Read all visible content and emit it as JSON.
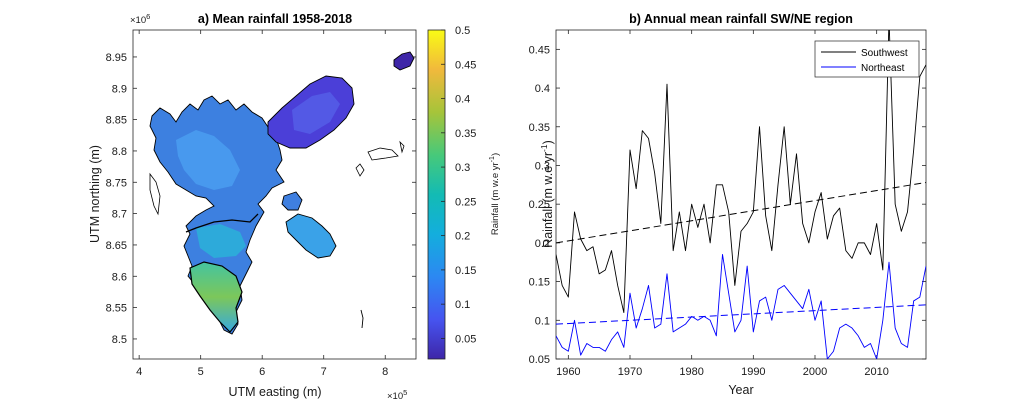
{
  "chart_data": [
    {
      "type": "heatmap",
      "title": "a) Mean rainfall 1958-2018",
      "xlabel": "UTM easting (m)",
      "ylabel": "UTM northing (m)",
      "x_exponent": "×10",
      "x_exponent_power": "5",
      "y_exponent": "×10",
      "y_exponent_power": "6",
      "xticks": [
        "4",
        "5",
        "6",
        "7",
        "8"
      ],
      "yticks": [
        "8.5",
        "8.55",
        "8.6",
        "8.65",
        "8.7",
        "8.75",
        "8.8",
        "8.85",
        "8.9",
        "8.95"
      ],
      "colorbar": {
        "label_main": "Rainfall (m w.e yr",
        "label_exp": "-1",
        "label_end": ")",
        "ticks": [
          "0.05",
          "0.1",
          "0.15",
          "0.2",
          "0.25",
          "0.3",
          "0.35",
          "0.4",
          "0.45",
          "0.5"
        ],
        "range": [
          0.02,
          0.5
        ],
        "colormap": "parula"
      }
    },
    {
      "type": "line",
      "title": "b) Annual mean rainfall SW/NE region",
      "xlabel": "Year",
      "ylabel_main": "Rainfall (m w.e yr",
      "ylabel_exp": "-1",
      "ylabel_end": ")",
      "xlim": [
        1958,
        2018
      ],
      "ylim": [
        0.05,
        0.475
      ],
      "xticks": [
        "1960",
        "1970",
        "1980",
        "1990",
        "2000",
        "2010"
      ],
      "yticks": [
        "0.05",
        "0.1",
        "0.15",
        "0.2",
        "0.25",
        "0.3",
        "0.35",
        "0.4",
        "0.45"
      ],
      "legend_position": "top-right",
      "x": [
        1958,
        1959,
        1960,
        1961,
        1962,
        1963,
        1964,
        1965,
        1966,
        1967,
        1968,
        1969,
        1970,
        1971,
        1972,
        1973,
        1974,
        1975,
        1976,
        1977,
        1978,
        1979,
        1980,
        1981,
        1982,
        1983,
        1984,
        1985,
        1986,
        1987,
        1988,
        1989,
        1990,
        1991,
        1992,
        1993,
        1994,
        1995,
        1996,
        1997,
        1998,
        1999,
        2000,
        2001,
        2002,
        2003,
        2004,
        2005,
        2006,
        2007,
        2008,
        2009,
        2010,
        2011,
        2012,
        2013,
        2014,
        2015,
        2016,
        2017,
        2018
      ],
      "series": [
        {
          "name": "Southwest",
          "color": "#000000",
          "values": [
            0.185,
            0.145,
            0.13,
            0.24,
            0.205,
            0.19,
            0.195,
            0.16,
            0.165,
            0.19,
            0.145,
            0.11,
            0.32,
            0.27,
            0.345,
            0.335,
            0.29,
            0.225,
            0.405,
            0.19,
            0.24,
            0.19,
            0.25,
            0.22,
            0.25,
            0.2,
            0.275,
            0.275,
            0.24,
            0.145,
            0.215,
            0.225,
            0.24,
            0.35,
            0.235,
            0.19,
            0.275,
            0.35,
            0.25,
            0.315,
            0.225,
            0.2,
            0.24,
            0.265,
            0.205,
            0.235,
            0.245,
            0.19,
            0.18,
            0.2,
            0.2,
            0.185,
            0.225,
            0.165,
            0.49,
            0.25,
            0.215,
            0.24,
            0.32,
            0.415,
            0.43
          ]
        },
        {
          "name": "Northeast",
          "color": "#0000ff",
          "values": [
            0.08,
            0.065,
            0.06,
            0.1,
            0.055,
            0.07,
            0.065,
            0.065,
            0.06,
            0.075,
            0.085,
            0.065,
            0.135,
            0.09,
            0.115,
            0.145,
            0.09,
            0.095,
            0.16,
            0.085,
            0.09,
            0.095,
            0.105,
            0.1,
            0.105,
            0.1,
            0.08,
            0.185,
            0.135,
            0.085,
            0.1,
            0.17,
            0.085,
            0.125,
            0.13,
            0.1,
            0.14,
            0.145,
            0.135,
            0.125,
            0.115,
            0.14,
            0.1,
            0.125,
            0.05,
            0.06,
            0.09,
            0.095,
            0.09,
            0.08,
            0.065,
            0.07,
            0.05,
            0.1,
            0.175,
            0.09,
            0.07,
            0.065,
            0.125,
            0.13,
            0.17
          ]
        }
      ],
      "trendlines": [
        {
          "series": "Southwest",
          "from": [
            1958,
            0.2
          ],
          "to": [
            2018,
            0.278
          ],
          "style": "dashed"
        },
        {
          "series": "Northeast",
          "from": [
            1958,
            0.095
          ],
          "to": [
            2018,
            0.12
          ],
          "style": "dashed"
        }
      ]
    }
  ]
}
